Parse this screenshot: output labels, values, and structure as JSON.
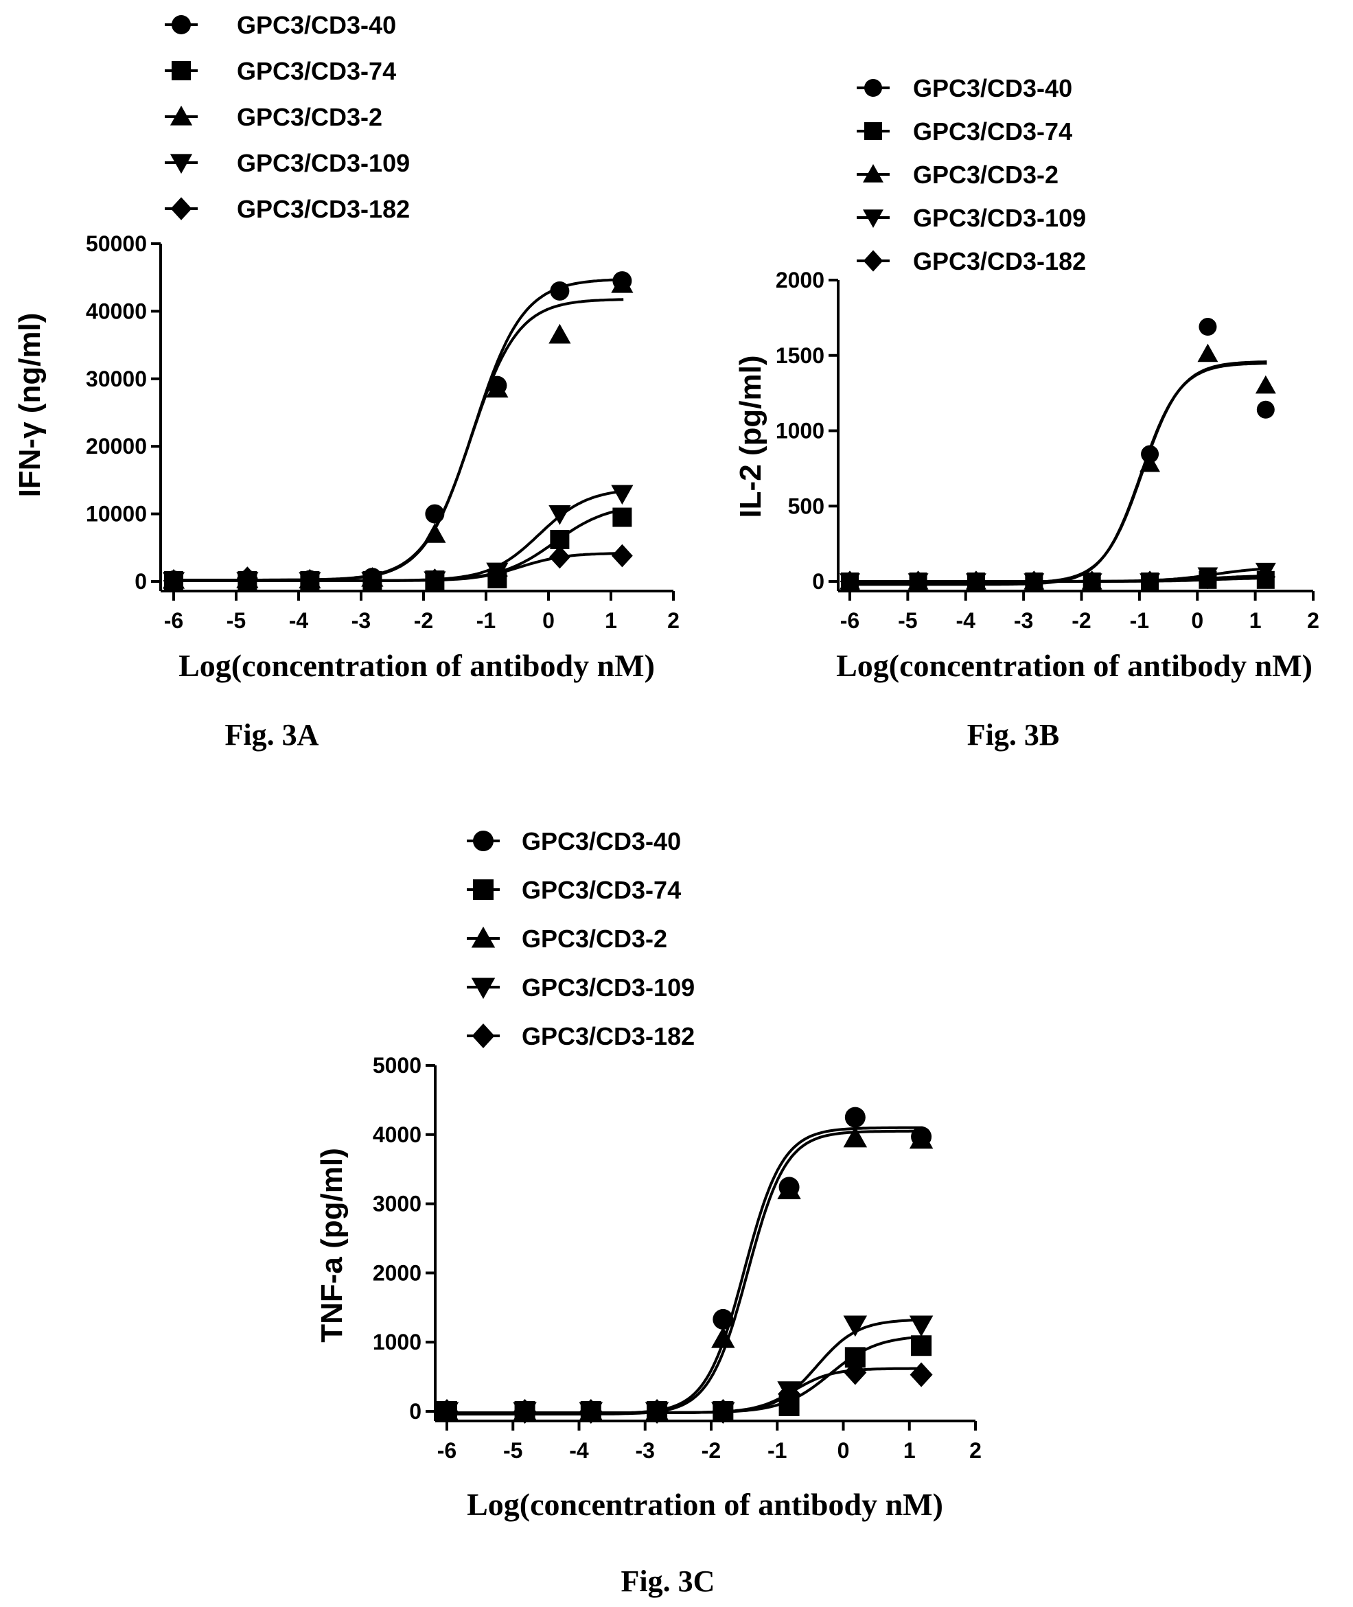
{
  "chart_data": [
    {
      "type": "scatter",
      "caption": "Fig. 3A",
      "xlabel": "Log(concentration  of antibody nM)",
      "ylabel": "IFN-γ (ng/ml)",
      "xlim": [
        -6,
        2
      ],
      "ylim": [
        0,
        50000
      ],
      "xticks": [
        -6,
        -5,
        -4,
        -3,
        -2,
        -1,
        0,
        1,
        2
      ],
      "yticks": [
        0,
        10000,
        20000,
        30000,
        40000,
        50000
      ],
      "legend_position": "top-left",
      "series": [
        {
          "name": "GPC3/CD3-40",
          "marker": "circle",
          "x": [
            -6,
            -4.82,
            -3.82,
            -2.82,
            -1.82,
            -0.82,
            0.18,
            1.18
          ],
          "y": [
            200,
            300,
            250,
            600,
            10000,
            29000,
            43000,
            44500
          ],
          "fit": {
            "bottom": 200,
            "top": 44800,
            "ec50": -1.2,
            "hill": 1.1
          }
        },
        {
          "name": "GPC3/CD3-74",
          "marker": "square",
          "x": [
            -6,
            -4.82,
            -3.82,
            -2.82,
            -1.82,
            -0.82,
            0.18,
            1.18
          ],
          "y": [
            100,
            100,
            100,
            100,
            200,
            400,
            6200,
            9500
          ],
          "fit": {
            "bottom": 100,
            "top": 11500,
            "ec50": 0.1,
            "hill": 1.0
          }
        },
        {
          "name": "GPC3/CD3-2",
          "marker": "triangle-up",
          "x": [
            -6,
            -4.82,
            -3.82,
            -2.82,
            -1.82,
            -0.82,
            0.18,
            1.18
          ],
          "y": [
            200,
            300,
            250,
            500,
            7000,
            28500,
            36500,
            44000
          ],
          "fit": {
            "bottom": 200,
            "top": 41800,
            "ec50": -1.25,
            "hill": 1.15
          }
        },
        {
          "name": "GPC3/CD3-109",
          "marker": "triangle-down",
          "x": [
            -6,
            -4.82,
            -3.82,
            -2.82,
            -1.82,
            -0.82,
            0.18,
            1.18
          ],
          "y": [
            100,
            100,
            100,
            100,
            200,
            1500,
            10000,
            13000
          ],
          "fit": {
            "bottom": 100,
            "top": 13800,
            "ec50": -0.15,
            "hill": 1.1
          }
        },
        {
          "name": "GPC3/CD3-182",
          "marker": "diamond",
          "x": [
            -6,
            -4.82,
            -3.82,
            -2.82,
            -1.82,
            -0.82,
            0.18,
            1.18
          ],
          "y": [
            100,
            500,
            100,
            100,
            200,
            800,
            3600,
            3800
          ],
          "fit": {
            "bottom": 100,
            "top": 4200,
            "ec50": -0.45,
            "hill": 1.2
          }
        }
      ]
    },
    {
      "type": "scatter",
      "caption": "Fig. 3B",
      "xlabel": "Log(concentration  of antibody nM)",
      "ylabel": "IL-2 (pg/ml)",
      "xlim": [
        -6,
        2
      ],
      "ylim": [
        0,
        2000
      ],
      "xticks": [
        -6,
        -5,
        -4,
        -3,
        -2,
        -1,
        0,
        1,
        2
      ],
      "yticks": [
        0,
        500,
        1000,
        1500,
        2000
      ],
      "legend_position": "top",
      "series": [
        {
          "name": "GPC3/CD3-40",
          "marker": "circle",
          "x": [
            -6,
            -4.82,
            -3.82,
            -2.82,
            -1.82,
            -0.82,
            0.18,
            1.18
          ],
          "y": [
            0,
            0,
            0,
            0,
            0,
            845,
            1690,
            1140
          ],
          "fit": {
            "bottom": -10,
            "top": 1460,
            "ec50": -0.95,
            "hill": 1.3
          }
        },
        {
          "name": "GPC3/CD3-74",
          "marker": "square",
          "x": [
            -6,
            -4.82,
            -3.82,
            -2.82,
            -1.82,
            -0.82,
            0.18,
            1.18
          ],
          "y": [
            0,
            0,
            0,
            0,
            0,
            0,
            10,
            10
          ],
          "fit": {
            "bottom": 0,
            "top": 25,
            "ec50": 0.3,
            "hill": 1.0
          }
        },
        {
          "name": "GPC3/CD3-2",
          "marker": "triangle-up",
          "x": [
            -6,
            -4.82,
            -3.82,
            -2.82,
            -1.82,
            -0.82,
            0.18,
            1.18
          ],
          "y": [
            0,
            0,
            0,
            0,
            0,
            780,
            1510,
            1300
          ],
          "fit": {
            "bottom": -20,
            "top": 1450,
            "ec50": -0.97,
            "hill": 1.3
          }
        },
        {
          "name": "GPC3/CD3-109",
          "marker": "triangle-down",
          "x": [
            -6,
            -4.82,
            -3.82,
            -2.82,
            -1.82,
            -0.82,
            0.18,
            1.18
          ],
          "y": [
            0,
            0,
            0,
            0,
            0,
            0,
            40,
            70
          ],
          "fit": {
            "bottom": 0,
            "top": 95,
            "ec50": 0.3,
            "hill": 1.0
          }
        },
        {
          "name": "GPC3/CD3-182",
          "marker": "diamond",
          "x": [
            -6,
            -4.82,
            -3.82,
            -2.82,
            -1.82,
            -0.82,
            0.18,
            1.18
          ],
          "y": [
            0,
            0,
            0,
            0,
            0,
            0,
            20,
            30
          ],
          "fit": {
            "bottom": 0,
            "top": 40,
            "ec50": 0.2,
            "hill": 1.0
          }
        }
      ]
    },
    {
      "type": "scatter",
      "caption": "Fig. 3C",
      "xlabel": "Log(concentration  of antibody nM)",
      "ylabel": "TNF-a (pg/ml)",
      "xlim": [
        -6,
        2
      ],
      "ylim": [
        0,
        5000
      ],
      "xticks": [
        -6,
        -5,
        -4,
        -3,
        -2,
        -1,
        0,
        1,
        2
      ],
      "yticks": [
        0,
        1000,
        2000,
        3000,
        4000,
        5000
      ],
      "legend_position": "top-left",
      "series": [
        {
          "name": "GPC3/CD3-40",
          "marker": "circle",
          "x": [
            -6,
            -4.82,
            -3.82,
            -2.82,
            -1.82,
            -0.82,
            0.18,
            1.18
          ],
          "y": [
            0,
            0,
            0,
            0,
            1330,
            3240,
            4250,
            3970
          ],
          "fit": {
            "bottom": -30,
            "top": 4100,
            "ec50": -1.5,
            "hill": 1.5
          }
        },
        {
          "name": "GPC3/CD3-74",
          "marker": "square",
          "x": [
            -6,
            -4.82,
            -3.82,
            -2.82,
            -1.82,
            -0.82,
            0.18,
            1.18
          ],
          "y": [
            0,
            0,
            0,
            0,
            0,
            80,
            780,
            950
          ],
          "fit": {
            "bottom": -20,
            "top": 1100,
            "ec50": -0.2,
            "hill": 1.2
          }
        },
        {
          "name": "GPC3/CD3-2",
          "marker": "triangle-up",
          "x": [
            -6,
            -4.82,
            -3.82,
            -2.82,
            -1.82,
            -0.82,
            0.18,
            1.18
          ],
          "y": [
            0,
            0,
            0,
            0,
            1050,
            3200,
            3950,
            3930
          ],
          "fit": {
            "bottom": -40,
            "top": 4050,
            "ec50": -1.45,
            "hill": 1.5
          }
        },
        {
          "name": "GPC3/CD3-109",
          "marker": "triangle-down",
          "x": [
            -6,
            -4.82,
            -3.82,
            -2.82,
            -1.82,
            -0.82,
            0.18,
            1.18
          ],
          "y": [
            0,
            0,
            0,
            0,
            0,
            300,
            1250,
            1250
          ],
          "fit": {
            "bottom": -20,
            "top": 1330,
            "ec50": -0.4,
            "hill": 1.4
          }
        },
        {
          "name": "GPC3/CD3-182",
          "marker": "diamond",
          "x": [
            -6,
            -4.82,
            -3.82,
            -2.82,
            -1.82,
            -0.82,
            0.18,
            1.18
          ],
          "y": [
            0,
            0,
            0,
            0,
            0,
            250,
            560,
            530
          ],
          "fit": {
            "bottom": -20,
            "top": 620,
            "ec50": -0.75,
            "hill": 1.5
          }
        }
      ]
    }
  ]
}
